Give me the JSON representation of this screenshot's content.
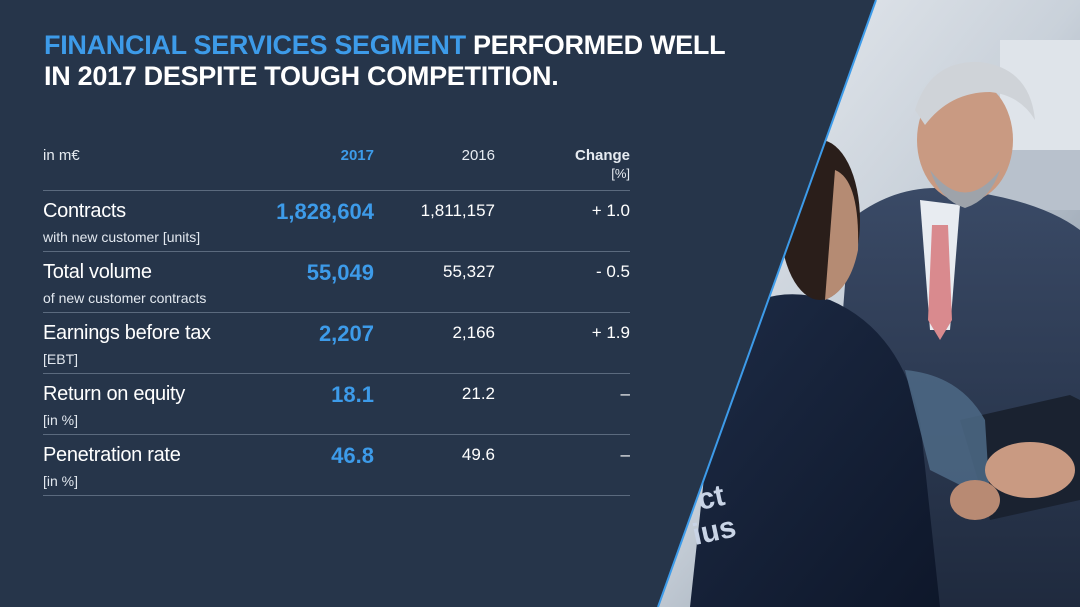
{
  "title": {
    "accent": "FINANCIAL SERVICES SEGMENT",
    "rest_line1": "PERFORMED WELL",
    "line2": "IN 2017 DESPITE TOUGH COMPETITION."
  },
  "table": {
    "unit": "in m€",
    "col_2017": "2017",
    "col_2016": "2016",
    "col_change": "Change",
    "col_change_unit": "[%]",
    "rows": [
      {
        "label": "Contracts",
        "sub": "with new customer [units]",
        "v2017": "1,828,604",
        "v2016": "1,811,157",
        "change": "+ 1.0"
      },
      {
        "label": "Total volume",
        "sub": "of new customer contracts",
        "v2017": "55,049",
        "v2016": "55,327",
        "change": "- 0.5"
      },
      {
        "label": "Earnings before tax",
        "sub": "[EBT]",
        "v2017": "2,207",
        "v2016": "2,166",
        "change": "+ 1.9"
      },
      {
        "label": "Return on equity",
        "sub": "[in %]",
        "v2017": "18.1",
        "v2016": "21.2",
        "change": "–"
      },
      {
        "label": "Penetration rate",
        "sub": "[in %]",
        "v2017": "46.8",
        "v2016": "49.6",
        "change": "–"
      }
    ]
  },
  "colors": {
    "background": "#26354a",
    "accent": "#3d9be9",
    "divider": "#5b6a7e"
  }
}
